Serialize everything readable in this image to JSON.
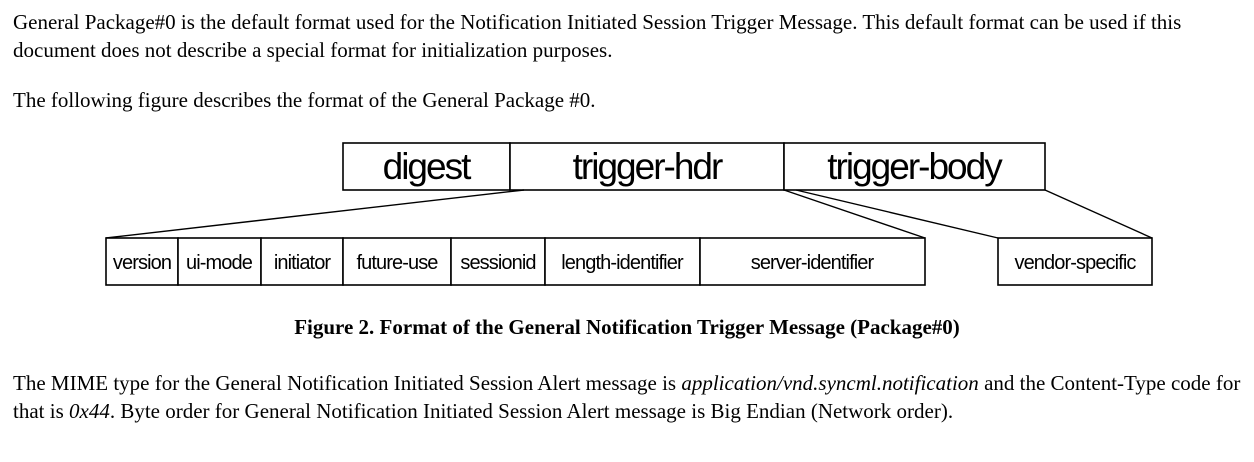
{
  "intro": {
    "p1": "General Package#0 is the default format used for the Notification Initiated Session Trigger Message. This default format can be used if this document does not describe a special format for initialization purposes.",
    "p2": "The following figure describes the format of the General Package #0."
  },
  "figure": {
    "top_fields": [
      "digest",
      "trigger-hdr",
      "trigger-body"
    ],
    "hdr_fields": [
      "version",
      "ui-mode",
      "initiator",
      "future-use",
      "sessionid",
      "length-identifier",
      "server-identifier"
    ],
    "body_fields": [
      "vendor-specific"
    ],
    "caption": "Figure 2. Format of the General Notification Trigger Message (Package#0)"
  },
  "mime": {
    "t1": "The MIME type for the General Notification Initiated Session Alert message is ",
    "type": "application/vnd.syncml.notification",
    "t2": " and the Content-Type code for that is ",
    "code": "0x44",
    "t3": ". Byte order for General Notification Initiated Session Alert message is Big Endian (Network order)."
  }
}
